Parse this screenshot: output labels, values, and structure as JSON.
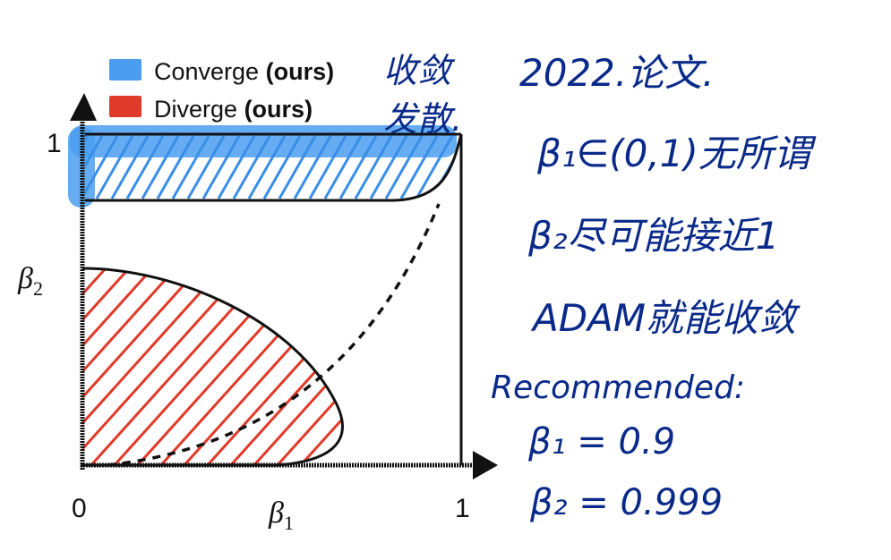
{
  "legend": {
    "converge": {
      "label": "Converge",
      "tag": "(ours)",
      "color": "#4a9df0"
    },
    "diverge": {
      "label": "Diverge",
      "tag": "(ours)",
      "color": "#e03a2a"
    }
  },
  "axes": {
    "x_origin": "0",
    "x_max": "1",
    "y_max": "1",
    "x_label": "β",
    "x_label_sub": "1",
    "y_label": "β",
    "y_label_sub": "2"
  },
  "handwritten": {
    "converge_note": "收敛",
    "diverge_note": "发散.",
    "line1": "2022.论文.",
    "line2": "β₁∈(0,1)无所谓",
    "line3": "β₂尽可能接近1",
    "line4": "ADAM就能收敛",
    "line5": "Recommended:",
    "line6": "β₁ = 0.9",
    "line7": "β₂ = 0.999",
    "ink_color": "#0a2a8a"
  }
}
